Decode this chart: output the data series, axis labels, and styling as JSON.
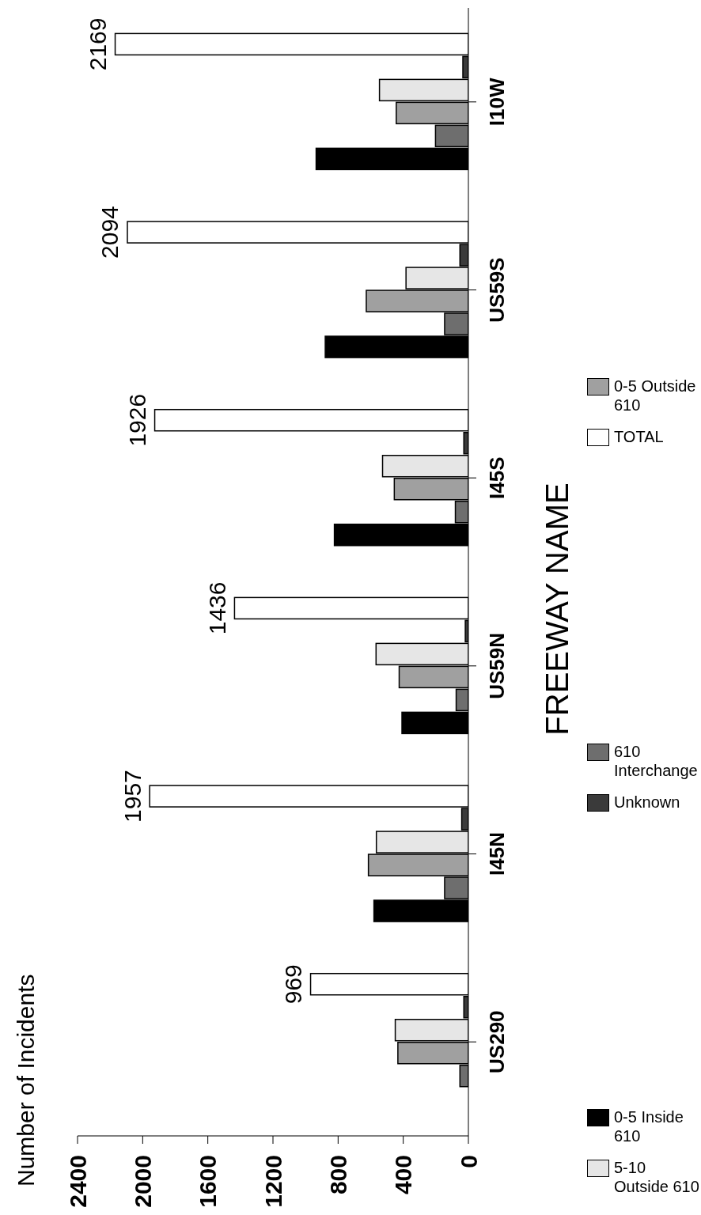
{
  "chart_data": {
    "type": "bar",
    "orientation": "horizontal",
    "title": "Number of Incidents",
    "ylabel": "FREEWAY NAME",
    "categories": [
      "I10W",
      "US59S",
      "I45S",
      "US59N",
      "I45N",
      "US290"
    ],
    "series": [
      {
        "name": "0-5 Inside 610",
        "color": "#000000",
        "values": [
          935,
          879,
          823,
          408,
          580,
          0
        ]
      },
      {
        "name": "610 Interchange",
        "color": "#6e6e6e",
        "values": [
          202,
          146,
          80,
          75,
          146,
          52
        ]
      },
      {
        "name": "0-5 Outside 610",
        "color": "#a0a0a0",
        "values": [
          443,
          627,
          455,
          425,
          614,
          433
        ]
      },
      {
        "name": "5-10 Outside 610",
        "color": "#e6e6e6",
        "values": [
          546,
          383,
          527,
          567,
          565,
          449
        ]
      },
      {
        "name": "Unknown",
        "color": "#3a3a3a",
        "values": [
          34,
          52,
          28,
          19,
          41,
          28
        ]
      },
      {
        "name": "TOTAL",
        "color": "#ffffff",
        "values": [
          2169,
          2094,
          1926,
          1436,
          1957,
          969
        ],
        "value_labels": [
          "2169",
          "2094",
          "1926",
          "1436",
          "1957",
          "969"
        ]
      }
    ],
    "xlim": [
      2400,
      0
    ],
    "xticks": [
      0,
      400,
      800,
      1200,
      1600,
      2000,
      2400
    ],
    "legend": "right"
  }
}
